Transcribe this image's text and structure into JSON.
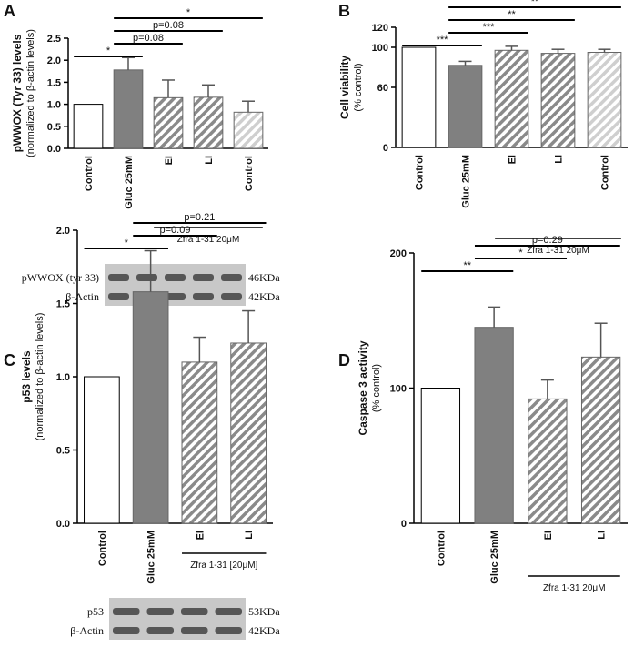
{
  "chart_data": [
    {
      "type": "bar",
      "panel": "A",
      "ylabel": "pWWOX (Tyr 33) levels",
      "ylabel_sub": "(normalized to β-actin levels)",
      "categories": [
        "Control",
        "Gluc 25mM",
        "EI",
        "LI",
        "Control"
      ],
      "values": [
        1.0,
        1.78,
        1.15,
        1.16,
        0.82
      ],
      "errors": [
        0,
        0.28,
        0.4,
        0.28,
        0.25
      ],
      "fills": [
        "#ffffff",
        "#808080",
        "hatch",
        "hatch",
        "hatch-light"
      ],
      "ylim": [
        0,
        2.5
      ],
      "yticks": [
        {
          "value": 0,
          "label": "0.0"
        },
        {
          "value": 0.5,
          "label": "0.5"
        },
        {
          "value": 1,
          "label": "1.0"
        },
        {
          "value": 1.5,
          "label": "1.5"
        },
        {
          "value": 2,
          "label": "2.0"
        },
        {
          "value": 2.5,
          "label": "2.5"
        }
      ],
      "brackets": [
        {
          "from": 0,
          "to": 1,
          "label": "*"
        },
        {
          "from": 1,
          "to": 2,
          "label": "p=0.08"
        },
        {
          "from": 1,
          "to": 3,
          "label": "p=0.08"
        },
        {
          "from": 1,
          "to": 4,
          "label": "*"
        }
      ],
      "group_label": "Zfra 1-31 20μM",
      "group_from": 2,
      "group_to": 4,
      "blot": [
        {
          "name": "pWWOX (tyr 33)",
          "size": "46KDa"
        },
        {
          "name": "β-Actin",
          "size": "42KDa"
        }
      ]
    },
    {
      "type": "bar",
      "panel": "B",
      "ylabel": "Cell viability",
      "ylabel_sub": "(% control)",
      "categories": [
        "Control",
        "Gluc 25mM",
        "EI",
        "LI",
        "Control"
      ],
      "values": [
        100,
        82,
        97,
        94,
        95
      ],
      "errors": [
        0,
        4,
        4,
        4,
        3
      ],
      "fills": [
        "#ffffff",
        "#808080",
        "hatch",
        "hatch",
        "hatch-light"
      ],
      "ylim": [
        0,
        120
      ],
      "yticks": [
        0,
        60,
        100,
        120
      ],
      "brackets": [
        {
          "from": 0,
          "to": 1,
          "label": "***"
        },
        {
          "from": 1,
          "to": 2,
          "label": "***"
        },
        {
          "from": 1,
          "to": 3,
          "label": "**"
        },
        {
          "from": 1,
          "to": 4,
          "label": "**"
        }
      ],
      "group_label": "Zfra 1-31 20μM",
      "group_from": 2,
      "group_to": 4
    },
    {
      "type": "bar",
      "panel": "C",
      "ylabel": "p53 levels",
      "ylabel_sub": "(normalized to β-actin levels)",
      "categories": [
        "Control",
        "Gluc 25mM",
        "EI",
        "LI"
      ],
      "values": [
        1.0,
        1.58,
        1.1,
        1.23
      ],
      "errors": [
        0,
        0.28,
        0.17,
        0.22
      ],
      "fills": [
        "#ffffff",
        "#808080",
        "hatch",
        "hatch"
      ],
      "ylim": [
        0,
        2
      ],
      "yticks": [
        {
          "value": 0,
          "label": "0.0"
        },
        {
          "value": 0.5,
          "label": "0.5"
        },
        {
          "value": 1,
          "label": "1.0"
        },
        {
          "value": 1.5,
          "label": "1.5"
        },
        {
          "value": 2,
          "label": "2.0"
        }
      ],
      "brackets": [
        {
          "from": 0,
          "to": 1,
          "label": "*"
        },
        {
          "from": 1,
          "to": 2,
          "label": "p=0.09"
        },
        {
          "from": 1,
          "to": 3,
          "label": "p=0.21"
        }
      ],
      "group_label": "Zfra 1-31 [20μM]",
      "group_from": 2,
      "group_to": 3,
      "blot": [
        {
          "name": "p53",
          "size": "53KDa"
        },
        {
          "name": "β-Actin",
          "size": "42KDa"
        }
      ]
    },
    {
      "type": "bar",
      "panel": "D",
      "ylabel": "Caspase 3 activity",
      "ylabel_sub": "(% control)",
      "categories": [
        "Control",
        "Gluc 25mM",
        "EI",
        "LI"
      ],
      "values": [
        100,
        145,
        92,
        123
      ],
      "errors": [
        0,
        15,
        14,
        25
      ],
      "fills": [
        "#ffffff",
        "#808080",
        "hatch",
        "hatch"
      ],
      "ylim": [
        0,
        200
      ],
      "yticks": [
        0,
        100,
        200
      ],
      "brackets": [
        {
          "from": 0,
          "to": 1,
          "label": "**"
        },
        {
          "from": 1,
          "to": 2,
          "label": "*"
        },
        {
          "from": 1,
          "to": 3,
          "label": "p=0.29"
        }
      ],
      "group_label": "Zfra 1-31 20μM",
      "group_from": 2,
      "group_to": 3
    }
  ]
}
